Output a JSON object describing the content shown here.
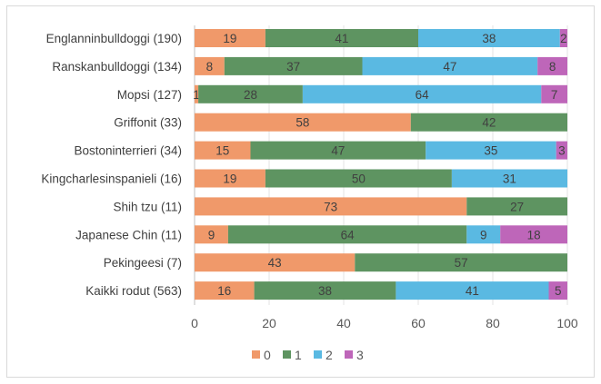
{
  "chart_data": {
    "type": "bar",
    "orientation": "horizontal",
    "stacked": true,
    "categories": [
      "Englanninbulldoggi (190)",
      "Ranskanbulldoggi (134)",
      "Mopsi (127)",
      "Griffonit (33)",
      "Bostoninterrieri (34)",
      "Kingcharlesinspanieli (16)",
      "Shih tzu (11)",
      "Japanese Chin (11)",
      "Pekingeesi (7)",
      "Kaikki rodut (563)"
    ],
    "series": [
      {
        "name": "0",
        "color": "#F0996A",
        "values": [
          19,
          8,
          1,
          58,
          15,
          19,
          73,
          9,
          43,
          16
        ]
      },
      {
        "name": "1",
        "color": "#5E9461",
        "values": [
          41,
          37,
          28,
          42,
          47,
          50,
          27,
          64,
          57,
          38
        ]
      },
      {
        "name": "2",
        "color": "#5AB9E2",
        "values": [
          38,
          47,
          64,
          0,
          35,
          31,
          0,
          9,
          0,
          41
        ]
      },
      {
        "name": "3",
        "color": "#BE66B9",
        "values": [
          2,
          8,
          7,
          0,
          3,
          0,
          0,
          18,
          0,
          5
        ]
      }
    ],
    "xlim": [
      0,
      100
    ],
    "xticks": [
      0,
      20,
      40,
      60,
      80,
      100
    ],
    "grid": true,
    "legend": "bottom",
    "title": "",
    "xlabel": "",
    "ylabel": ""
  }
}
